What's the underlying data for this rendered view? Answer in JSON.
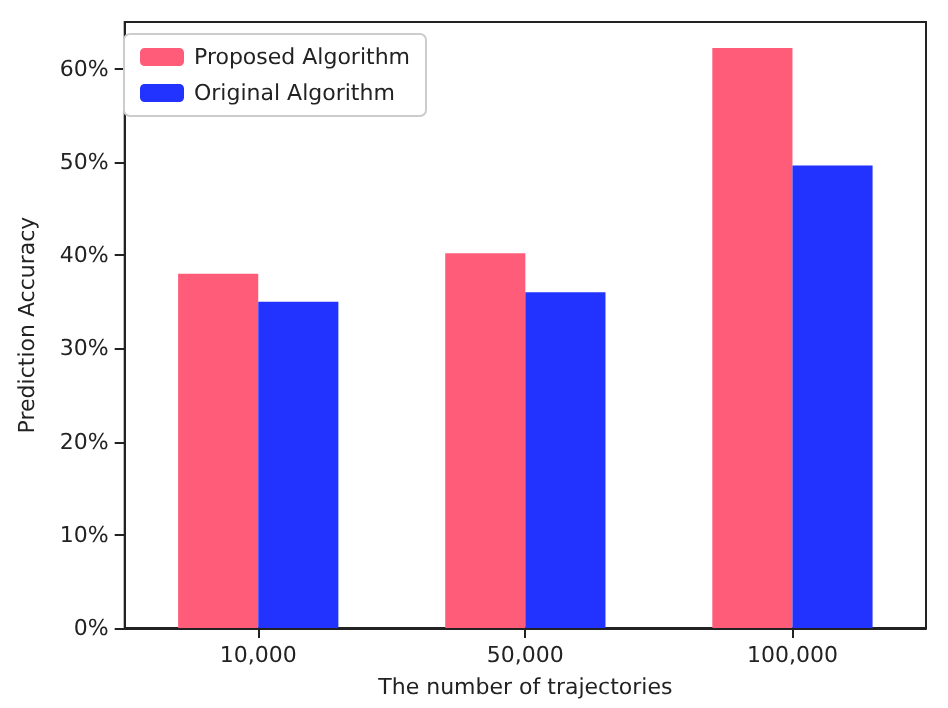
{
  "chart_data": {
    "type": "bar",
    "xlabel": "The number of trajectories",
    "ylabel": "Prediction Accuracy",
    "categories": [
      "10,000",
      "50,000",
      "100,000"
    ],
    "series": [
      {
        "name": "Proposed Algorithm",
        "color": "#ff5c7a",
        "values": [
          38.0,
          40.2,
          62.2
        ]
      },
      {
        "name": "Original Algorithm",
        "color": "#2233ff",
        "values": [
          35.0,
          36.0,
          49.6
        ]
      }
    ],
    "ylim": [
      0,
      65
    ],
    "yticks": [
      {
        "value": 0,
        "label": "0%"
      },
      {
        "value": 10,
        "label": "10%"
      },
      {
        "value": 20,
        "label": "20%"
      },
      {
        "value": 30,
        "label": "30%"
      },
      {
        "value": 40,
        "label": "40%"
      },
      {
        "value": 50,
        "label": "50%"
      },
      {
        "value": 60,
        "label": "60%"
      }
    ],
    "grid": false,
    "legend": "top left"
  }
}
